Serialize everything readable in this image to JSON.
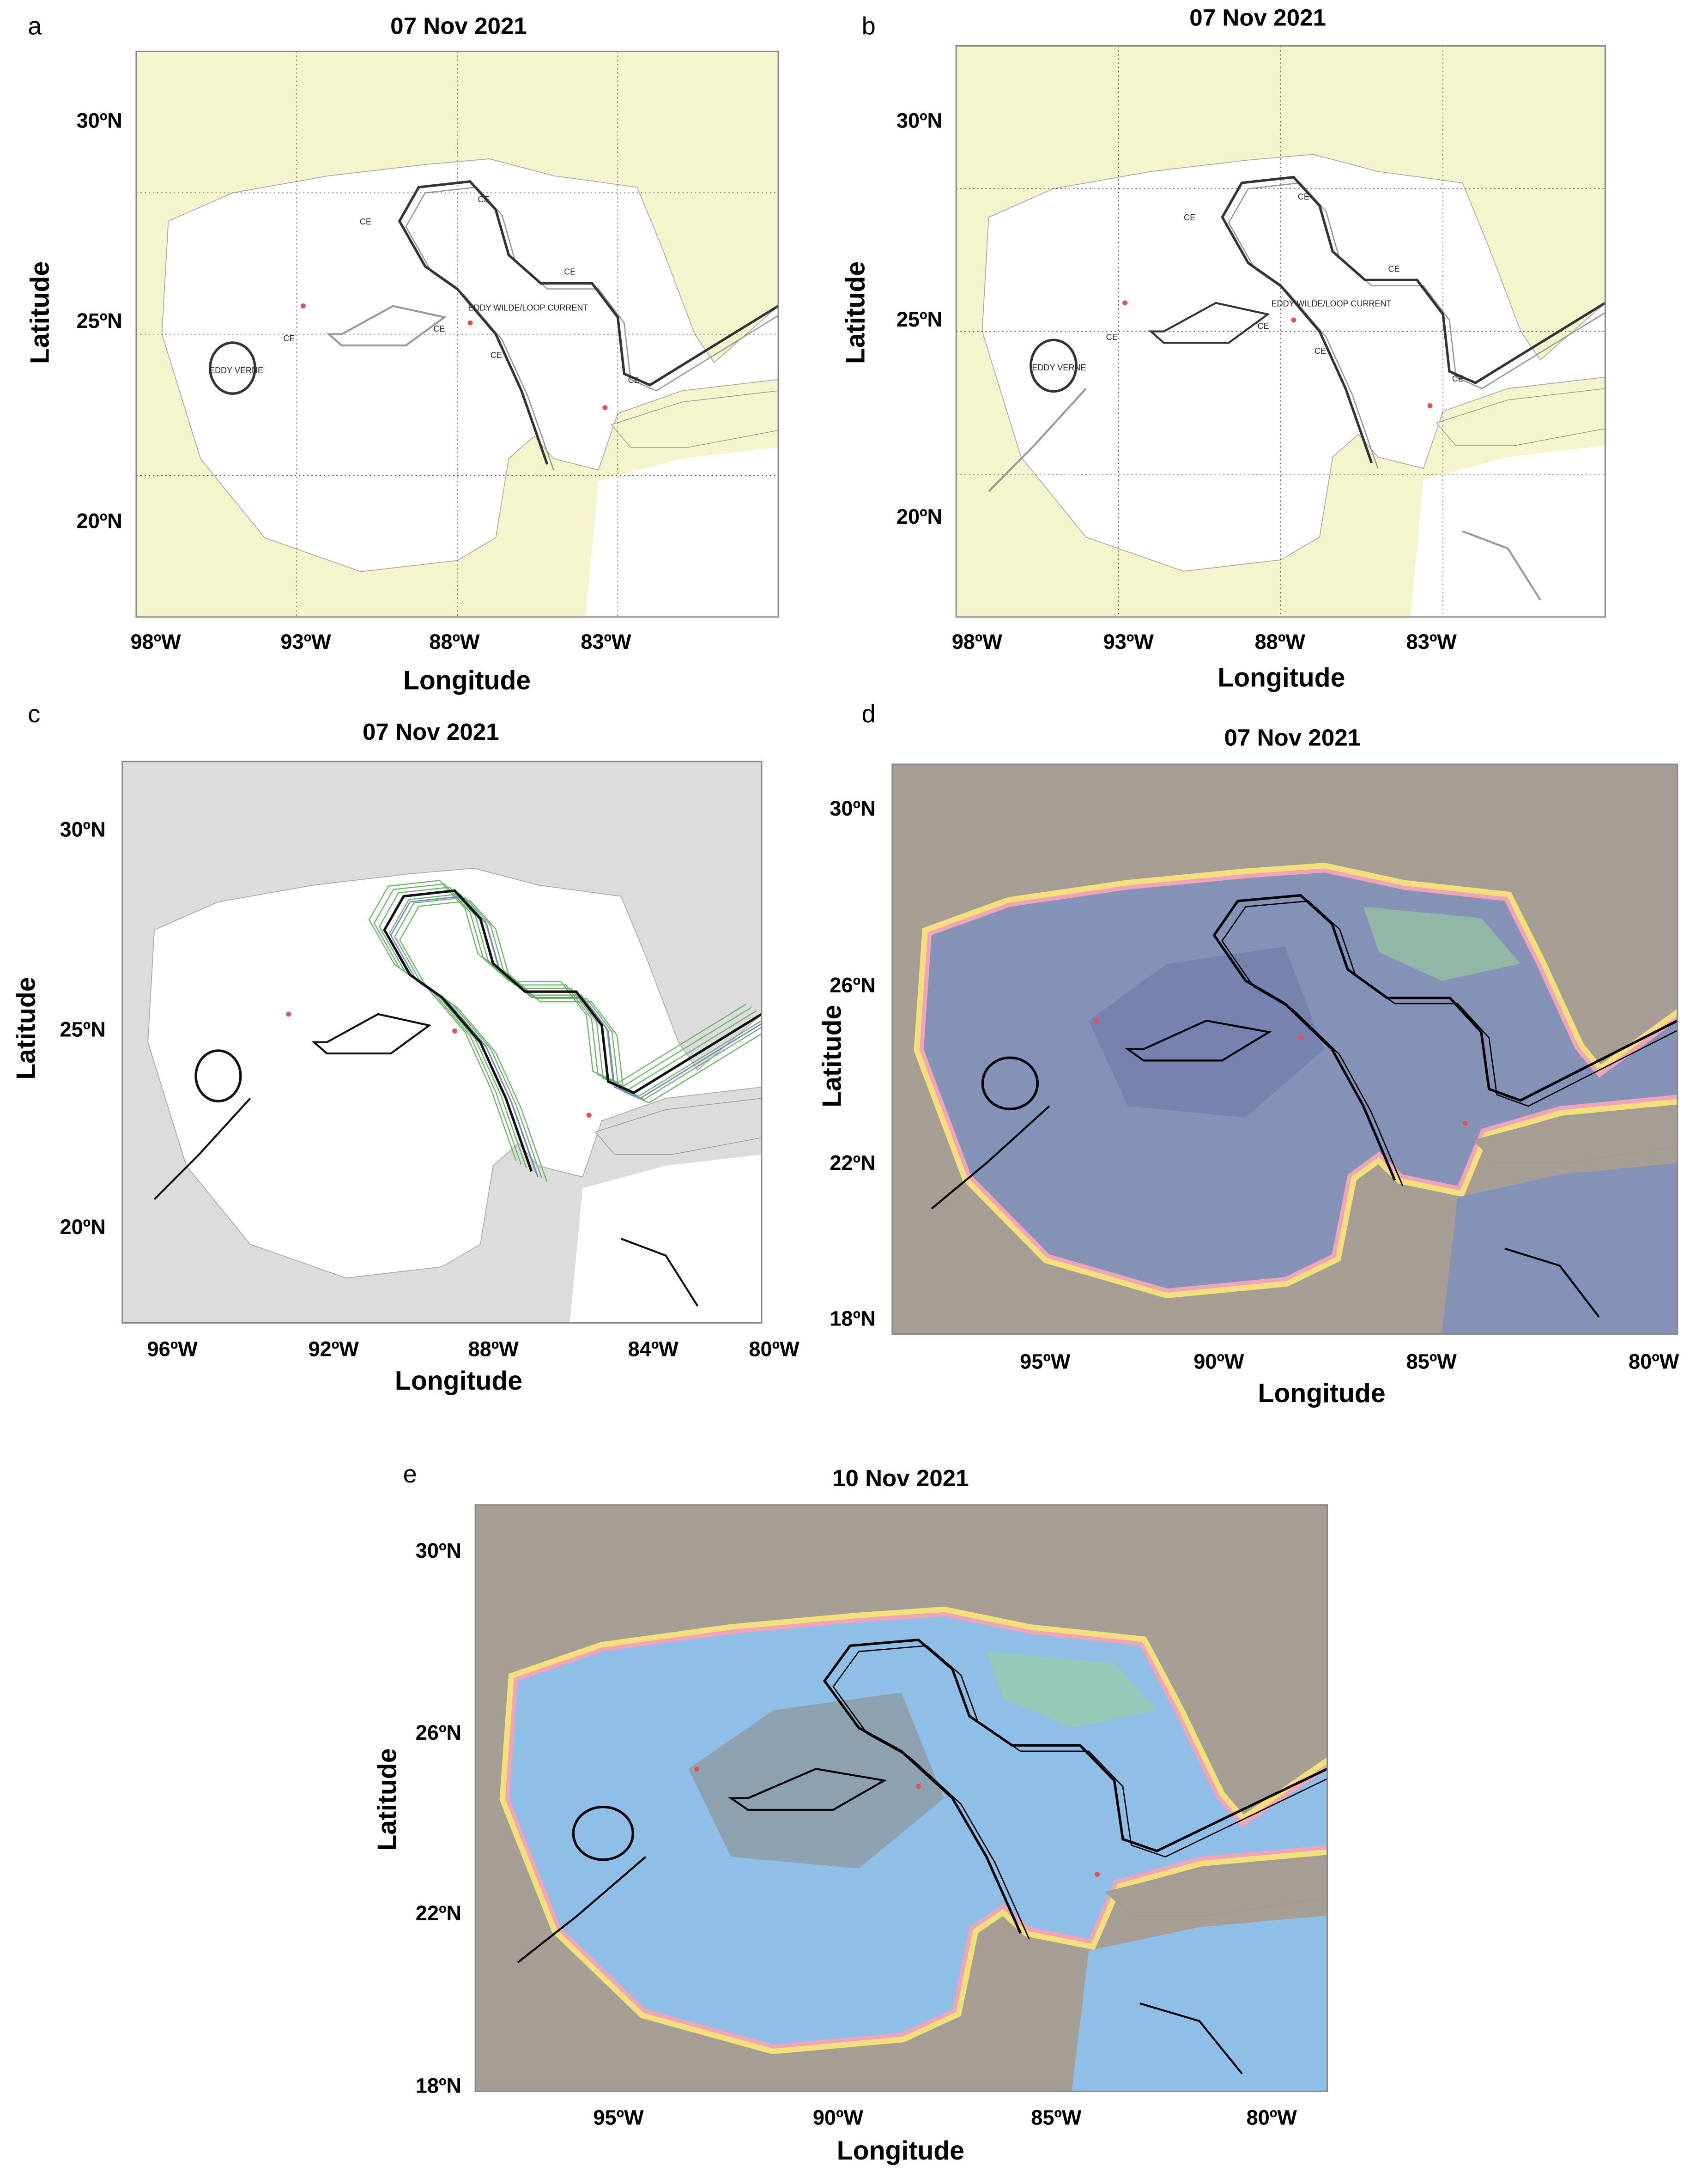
{
  "panels": [
    {
      "label": "a",
      "title": "07 Nov 2021",
      "xlabel": "Longitude",
      "ylabel": "Latitude",
      "xticks": [
        "98ºW",
        "93ºW",
        "88ºW",
        "83ºW"
      ],
      "yticks": [
        "30ºN",
        "25ºN",
        "20ºN"
      ],
      "annotations": [
        "CE",
        "CE",
        "CE",
        "EDDY WILDE/LOOP CURRENT",
        "CE",
        "CE",
        "EDDY VERNE",
        "CE",
        "CE"
      ]
    },
    {
      "label": "b",
      "title": "07 Nov 2021",
      "xlabel": "Longitude",
      "ylabel": "Latitude",
      "xticks": [
        "98ºW",
        "93ºW",
        "88ºW",
        "83ºW"
      ],
      "yticks": [
        "30ºN",
        "25ºN",
        "20ºN"
      ],
      "annotations": [
        "CE",
        "CE",
        "CE",
        "EDDY WILDE/LOOP CURRENT",
        "CE",
        "CE",
        "EDDY VERNE",
        "CE",
        "CE"
      ]
    },
    {
      "label": "c",
      "title": "07 Nov 2021",
      "xlabel": "Longitude",
      "ylabel": "Latitude",
      "xticks": [
        "96ºW",
        "92ºW",
        "88ºW",
        "84ºW",
        "80ºW"
      ],
      "yticks": [
        "30ºN",
        "25ºN",
        "20ºN"
      ]
    },
    {
      "label": "d",
      "title": "07 Nov 2021",
      "xlabel": "Longitude",
      "ylabel": "Latitude",
      "xticks": [
        "95ºW",
        "90ºW",
        "85ºW",
        "80ºW"
      ],
      "yticks": [
        "30ºN",
        "26ºN",
        "22ºN",
        "18ºN"
      ]
    },
    {
      "label": "e",
      "title": "10 Nov 2021",
      "xlabel": "Longitude",
      "ylabel": "Latitude",
      "xticks": [
        "95ºW",
        "90ºW",
        "85ºW",
        "80ºW"
      ],
      "yticks": [
        "30ºN",
        "26ºN",
        "22ºN",
        "18ºN"
      ]
    }
  ]
}
